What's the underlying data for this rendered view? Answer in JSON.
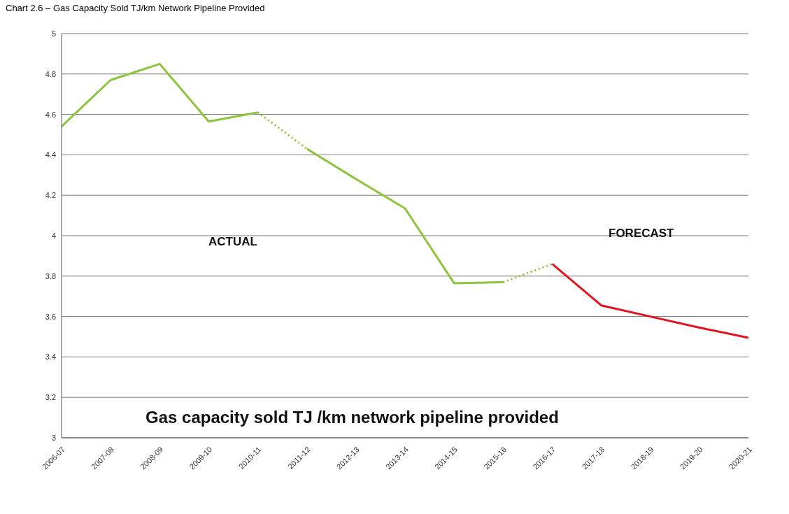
{
  "chart_data": {
    "type": "line",
    "title": "Chart 2.6 – Gas Capacity Sold TJ/km Network Pipeline Provided",
    "categories": [
      "2006-07",
      "2007-08",
      "2008-09",
      "2009-10",
      "2010-11",
      "2011-12",
      "2012-13",
      "2013-14",
      "2014-15",
      "2015-16",
      "2016-17",
      "2017-18",
      "2018-19",
      "2019-20",
      "2020-21"
    ],
    "series": [
      {
        "color": "#8cc43c",
        "line_style": "solid",
        "values": [
          4.54,
          4.77,
          4.85,
          4.565,
          4.61,
          null,
          null,
          null,
          null,
          null,
          null,
          null,
          null,
          null,
          null
        ]
      },
      {
        "color": "#8cc43c",
        "line_style": "dotted",
        "values": [
          null,
          null,
          null,
          null,
          4.61,
          4.43,
          null,
          null,
          null,
          null,
          null,
          null,
          null,
          null,
          null
        ]
      },
      {
        "color": "#8cc43c",
        "line_style": "solid",
        "values": [
          null,
          null,
          null,
          null,
          null,
          4.43,
          4.28,
          4.135,
          3.765,
          3.77,
          null,
          null,
          null,
          null,
          null
        ]
      },
      {
        "color": "#8cc43c",
        "line_style": "dotted",
        "values": [
          null,
          null,
          null,
          null,
          null,
          null,
          null,
          null,
          null,
          3.77,
          3.86,
          null,
          null,
          null,
          null
        ]
      },
      {
        "color": "#e0141e",
        "line_style": "solid",
        "values": [
          null,
          null,
          null,
          null,
          null,
          null,
          null,
          null,
          null,
          null,
          3.86,
          3.655,
          3.6,
          3.545,
          3.495
        ]
      }
    ],
    "ylim": [
      3,
      5
    ],
    "yticks": [
      3,
      3.2,
      3.4,
      3.6,
      3.8,
      4,
      4.2,
      4.4,
      4.6,
      4.8,
      5
    ],
    "grid": "y",
    "marker": "none",
    "annotations": [
      "ACTUAL",
      "FORECAST",
      "Gas capacity sold TJ /km network pipeline provided"
    ]
  }
}
